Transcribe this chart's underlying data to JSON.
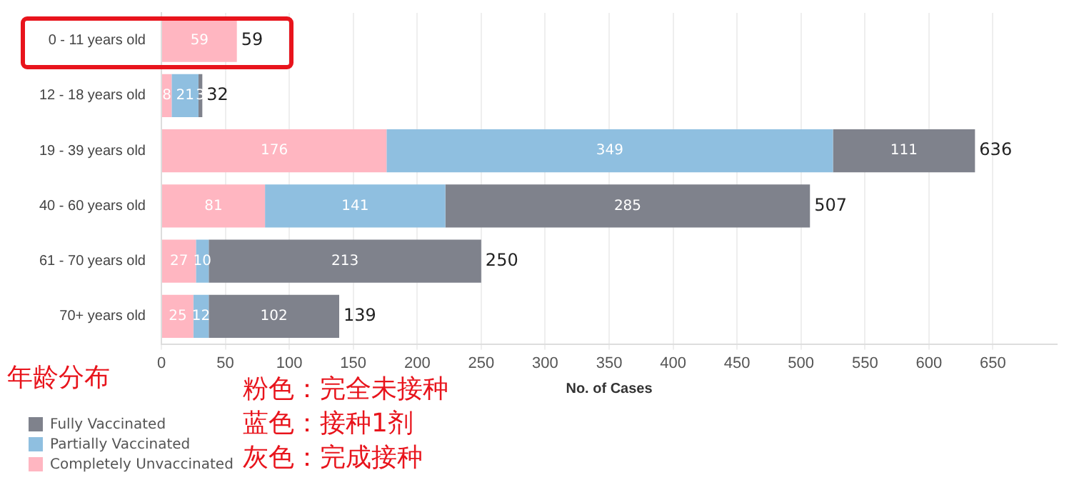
{
  "chart_data": {
    "type": "bar",
    "orientation": "horizontal",
    "stacked": true,
    "xlabel": "No. of Cases",
    "categories": [
      "0 - 11 years old",
      "12 - 18 years old",
      "19 - 39 years old",
      "40 - 60 years old",
      "61 - 70 years old",
      "70+ years old"
    ],
    "series": [
      {
        "name": "Completely Unvaccinated",
        "color": "#ffb6c1",
        "values": [
          59,
          8,
          176,
          81,
          27,
          25
        ],
        "value_labels": [
          "59",
          "8",
          "176",
          "81",
          "27",
          "25"
        ]
      },
      {
        "name": "Partially Vaccinated",
        "color": "#8fbfe0",
        "values": [
          0,
          21,
          349,
          141,
          10,
          12
        ],
        "value_labels": [
          null,
          "21",
          "349",
          "141",
          "10",
          "12"
        ]
      },
      {
        "name": "Fully Vaccinated",
        "color": "#7f828c",
        "values": [
          0,
          3,
          111,
          285,
          213,
          102
        ],
        "value_labels": [
          null,
          "3",
          "111",
          "285",
          "213",
          "102"
        ]
      }
    ],
    "totals": [
      "59",
      "32",
      "636",
      "507",
      "250",
      "139"
    ],
    "xlim": [
      0,
      700
    ],
    "xticks": [
      0,
      50,
      100,
      150,
      200,
      250,
      300,
      350,
      400,
      450,
      500,
      550,
      600,
      650
    ],
    "grid": "x",
    "legend": "bottom left",
    "annotations": [
      "年龄分布",
      "粉色：完全未接种",
      "蓝色：接种1剂",
      "灰色：完成接种"
    ]
  }
}
